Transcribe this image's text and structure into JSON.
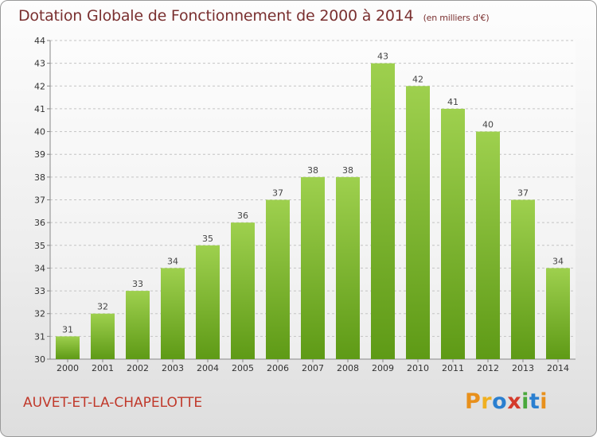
{
  "header": {
    "title": "Dotation Globale de Fonctionnement de 2000 à 2014",
    "unit": "(en milliers d'€)"
  },
  "footer": {
    "commune": "AUVET-ET-LA-CHAPELOTTE",
    "logo_letters": [
      "P",
      "r",
      "o",
      "x",
      "i",
      "t",
      "i"
    ],
    "logo_colors": [
      "#e8901c",
      "#f0b020",
      "#2a7fd0",
      "#d43b2c",
      "#4aa83c",
      "#2a7fd0",
      "#e8901c"
    ]
  },
  "colors": {
    "title": "#7a3030",
    "commune": "#c0392b",
    "bar_top": "#9ed04e",
    "bar_bottom": "#5e9a16"
  },
  "chart_data": {
    "type": "bar",
    "title": "Dotation Globale de Fonctionnement de 2000 à 2014",
    "subtitle": "(en milliers d'€)",
    "categories": [
      "2000",
      "2001",
      "2002",
      "2003",
      "2004",
      "2005",
      "2006",
      "2007",
      "2008",
      "2009",
      "2010",
      "2011",
      "2012",
      "2013",
      "2014"
    ],
    "values": [
      31,
      32,
      33,
      34,
      35,
      36,
      37,
      38,
      38,
      43,
      42,
      41,
      40,
      37,
      34
    ],
    "ylim": [
      30,
      44
    ],
    "yticks": [
      30,
      31,
      32,
      33,
      34,
      35,
      36,
      37,
      38,
      39,
      40,
      41,
      42,
      43,
      44
    ],
    "grid": "horizontal dashed",
    "xlabel": "",
    "ylabel": ""
  }
}
